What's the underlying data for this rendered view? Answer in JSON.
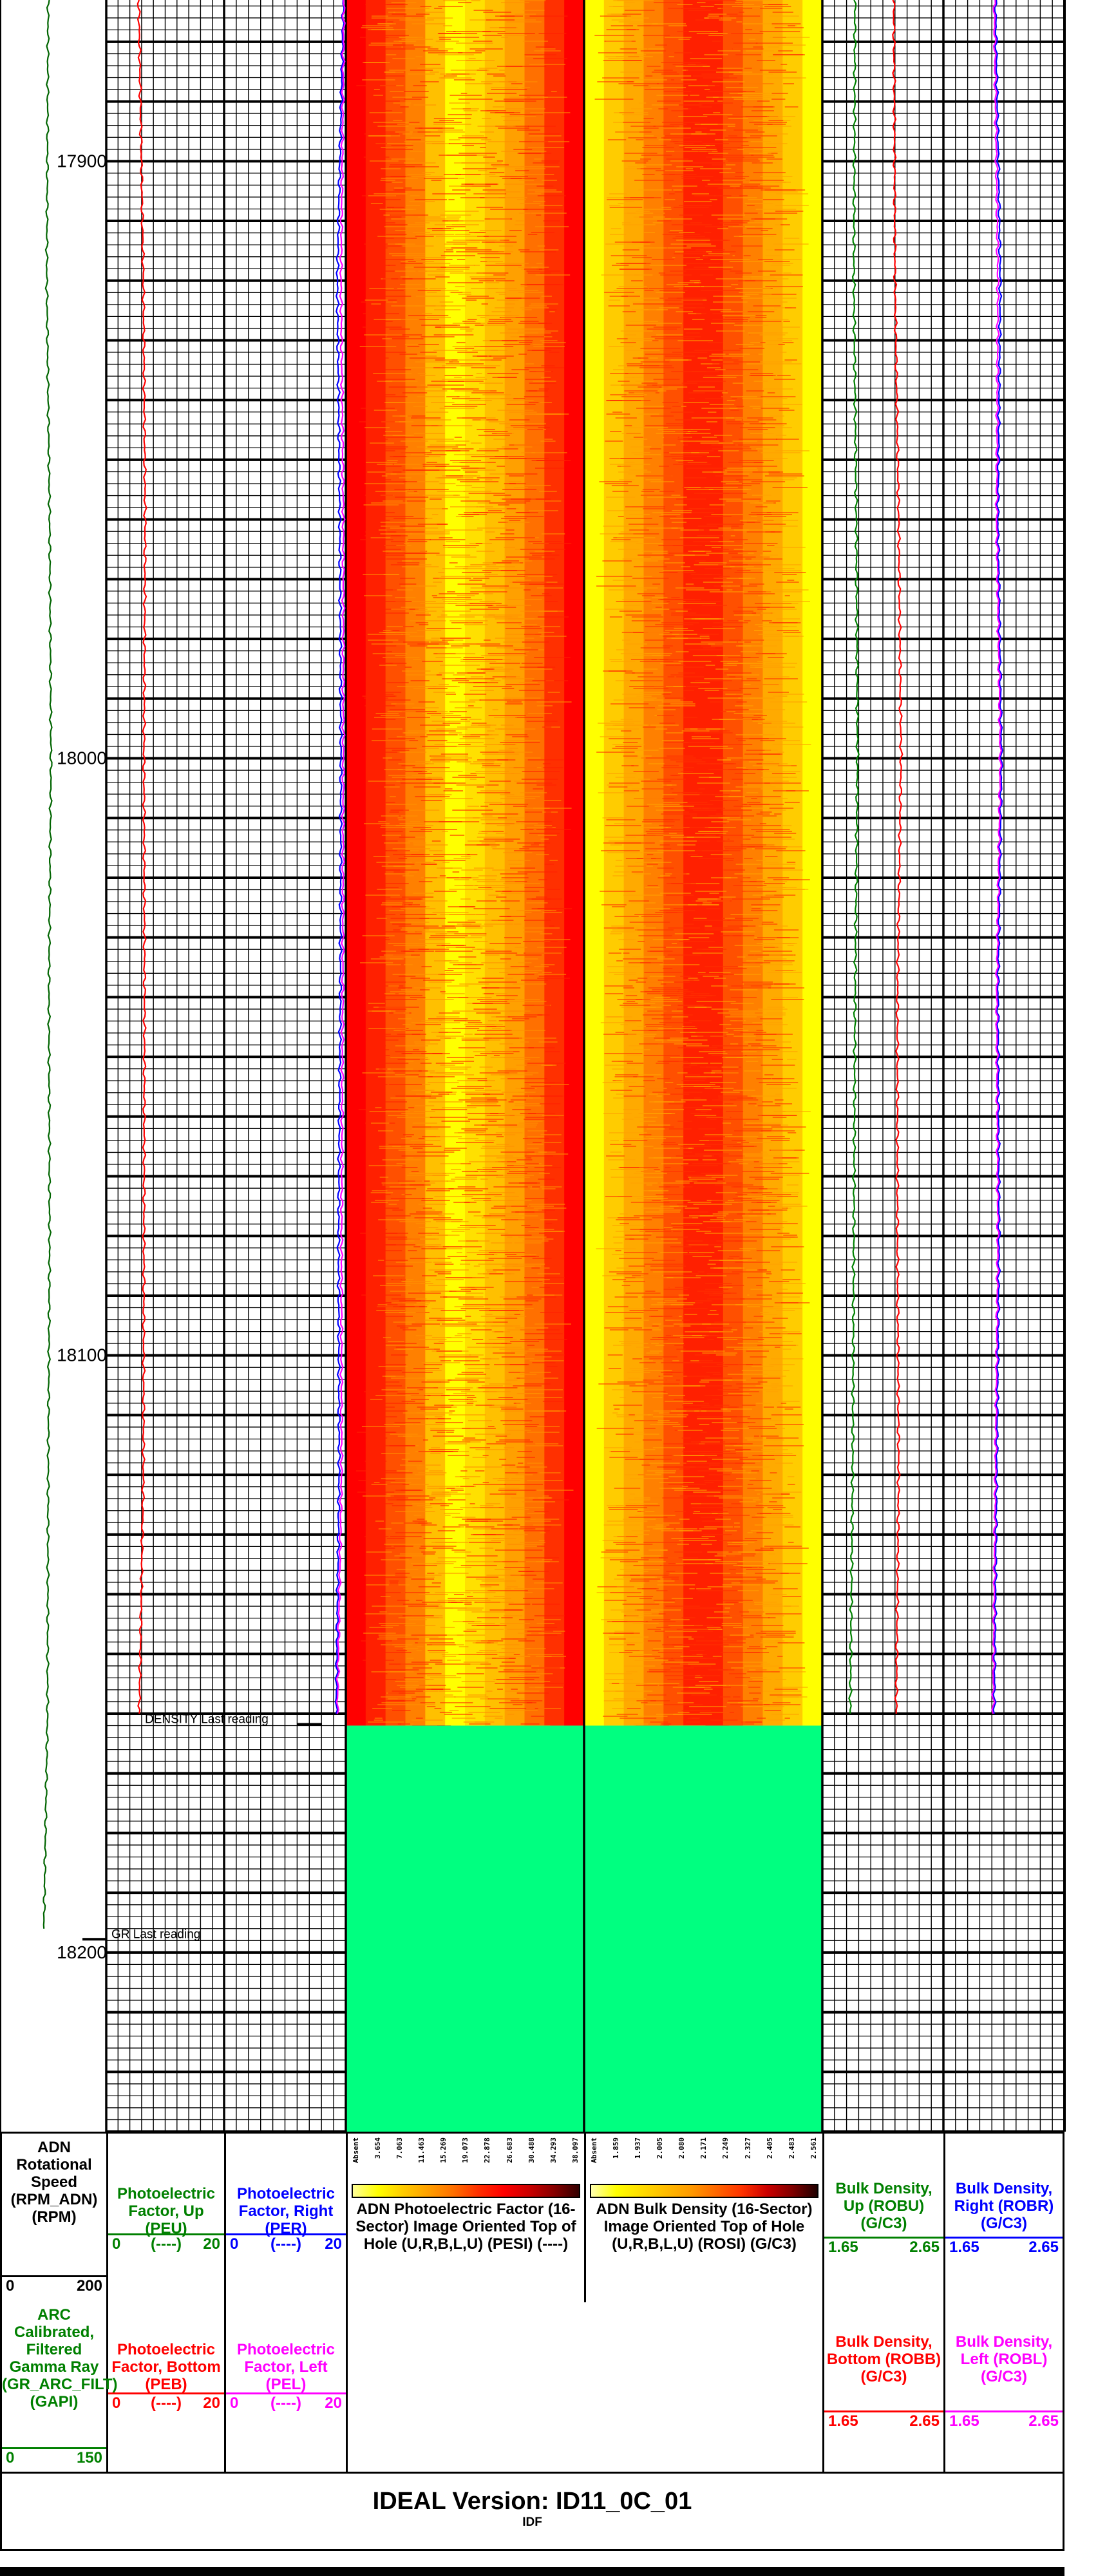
{
  "chart_data": {
    "type": "line",
    "title": "",
    "depth_axis": {
      "range": [
        17873,
        18230
      ],
      "tick_labels": [
        "17900",
        "18000",
        "18100",
        "18200"
      ]
    },
    "annotations": [
      {
        "text": "DENSITY Last reading",
        "depth": 18162
      },
      {
        "text": "GR Last reading",
        "depth": 18198
      }
    ],
    "tracks": [
      {
        "id": "rpm_gr",
        "grid": false,
        "curves": [
          {
            "mnemonic": "GR_ARC_FILT",
            "name": "ARC Calibrated, Filtered Gamma Ray (GR_ARC_FILT)",
            "unit": "GAPI",
            "scale": [
              0,
              150
            ],
            "color": "#006400",
            "points": [
              [
                17873,
                68
              ],
              [
                17920,
                66
              ],
              [
                17960,
                70
              ],
              [
                18000,
                72
              ],
              [
                18040,
                69
              ],
              [
                18080,
                70
              ],
              [
                18120,
                68
              ],
              [
                18160,
                67
              ],
              [
                18196,
                62
              ]
            ]
          }
        ]
      },
      {
        "id": "pe_up_bottom",
        "grid": true,
        "curves": [
          {
            "mnemonic": "PEU",
            "name": "Photoelectric Factor, Up",
            "unit": "----",
            "scale": [
              0,
              20
            ],
            "color": "#008000",
            "points": []
          },
          {
            "mnemonic": "PEB",
            "name": "Photoelectric Factor, Bottom",
            "unit": "----",
            "scale": [
              0,
              20
            ],
            "color": "#ff0000",
            "points": [
              [
                17873,
                5.5
              ],
              [
                17920,
                6.3
              ],
              [
                17960,
                6.6
              ],
              [
                18000,
                6.4
              ],
              [
                18040,
                6.5
              ],
              [
                18080,
                6.4
              ],
              [
                18120,
                6.3
              ],
              [
                18160,
                5.6
              ]
            ]
          }
        ]
      },
      {
        "id": "pe_right_left",
        "grid": true,
        "curves": [
          {
            "mnemonic": "PER",
            "name": "Photoelectric Factor, Right",
            "unit": "----",
            "scale": [
              0,
              20
            ],
            "color": "#0000ff",
            "points": [
              [
                17873,
                19.6
              ],
              [
                17920,
                18.6
              ],
              [
                17960,
                19.0
              ],
              [
                18000,
                19.2
              ],
              [
                18040,
                19.1
              ],
              [
                18080,
                18.8
              ],
              [
                18120,
                18.9
              ],
              [
                18160,
                18.4
              ]
            ]
          },
          {
            "mnemonic": "PEL",
            "name": "Photoelectric Factor, Left",
            "unit": "----",
            "scale": [
              0,
              20
            ],
            "color": "#ff00ff",
            "points": [
              [
                17873,
                19.7
              ],
              [
                17920,
                19.2
              ],
              [
                17960,
                19.6
              ],
              [
                18000,
                19.6
              ],
              [
                18040,
                19.5
              ],
              [
                18080,
                19.3
              ],
              [
                18120,
                19.3
              ],
              [
                18160,
                18.6
              ]
            ]
          }
        ]
      },
      {
        "id": "pesi",
        "type": "image",
        "name": "ADN Photoelectric Factor (16-Sector) Image Oriented Top of Hole (U,R,B,L,U) (PESI)",
        "unit": "----",
        "data_range": [
          18162,
          18230
        ],
        "no_data_color": "#00ff80",
        "colorbar": {
          "ticks": [
            "Absent",
            "3.654",
            "7.063",
            "11.463",
            "15.269",
            "19.073",
            "22.878",
            "26.683",
            "30.488",
            "34.293",
            "38.097"
          ],
          "colors": [
            "#ffff99",
            "#ffff00",
            "#ffcc00",
            "#ffa000",
            "#ff7000",
            "#ff3000",
            "#ff0000",
            "#cc0000",
            "#880000",
            "#330000"
          ]
        },
        "column_pattern": [
          "#ff0000",
          "#ff2000",
          "#ff5000",
          "#ff8000",
          "#ffc000",
          "#ffff00",
          "#ffe000",
          "#ffc000",
          "#ffa000",
          "#ff7000",
          "#ff3000",
          "#ff0000"
        ]
      },
      {
        "id": "rosi",
        "type": "image",
        "name": "ADN Bulk Density (16-Sector) Image Oriented Top of Hole (U,R,B,L,U) (ROSI)",
        "unit": "G/C3",
        "data_range": [
          18162,
          18230
        ],
        "no_data_color": "#00ff80",
        "colorbar": {
          "ticks": [
            "Absent",
            "1.859",
            "1.937",
            "2.005",
            "2.080",
            "2.171",
            "2.249",
            "2.327",
            "2.405",
            "2.483",
            "2.561"
          ],
          "colors": [
            "#ffffb0",
            "#ffff00",
            "#ffdd00",
            "#ffbb00",
            "#ff9900",
            "#ff6600",
            "#ff3300",
            "#cc0000",
            "#800000",
            "#200000"
          ]
        },
        "column_pattern": [
          "#ffff00",
          "#ffcc00",
          "#ffaa00",
          "#ff8000",
          "#ff5000",
          "#ff2000",
          "#ff2000",
          "#ff5000",
          "#ff8000",
          "#ffaa00",
          "#ffcc00",
          "#ffff00"
        ]
      },
      {
        "id": "rho_up_bottom",
        "grid": true,
        "curves": [
          {
            "mnemonic": "ROBU",
            "name": "Bulk Density, Up (ROBU)",
            "unit": "G/C3",
            "scale": [
              1.65,
              2.65
            ],
            "color": "#008000",
            "points": [
              [
                17873,
                1.92
              ],
              [
                17920,
                1.91
              ],
              [
                17960,
                1.93
              ],
              [
                18000,
                1.94
              ],
              [
                18040,
                1.92
              ],
              [
                18080,
                1.91
              ],
              [
                18120,
                1.9
              ],
              [
                18160,
                1.88
              ]
            ]
          },
          {
            "mnemonic": "ROBB",
            "name": "Bulk Density, Bottom (ROBB)",
            "unit": "G/C3",
            "scale": [
              1.65,
              2.65
            ],
            "color": "#ff0000",
            "points": [
              [
                17873,
                2.24
              ],
              [
                17920,
                2.25
              ],
              [
                17960,
                2.28
              ],
              [
                18000,
                2.3
              ],
              [
                18040,
                2.27
              ],
              [
                18080,
                2.27
              ],
              [
                18120,
                2.28
              ],
              [
                18160,
                2.26
              ]
            ]
          }
        ]
      },
      {
        "id": "rho_right_left",
        "grid": true,
        "curves": [
          {
            "mnemonic": "ROBR",
            "name": "Bulk Density, Right (ROBR)",
            "unit": "G/C3",
            "scale": [
              1.65,
              2.65
            ],
            "color": "#0000ff",
            "points": [
              [
                17873,
                2.08
              ],
              [
                17920,
                2.12
              ],
              [
                17960,
                2.1
              ],
              [
                18000,
                2.13
              ],
              [
                18040,
                2.1
              ],
              [
                18080,
                2.11
              ],
              [
                18120,
                2.09
              ],
              [
                18160,
                2.07
              ]
            ]
          },
          {
            "mnemonic": "ROBL",
            "name": "Bulk Density, Left (ROBL)",
            "unit": "G/C3",
            "scale": [
              1.65,
              2.65
            ],
            "color": "#ff00ff",
            "points": [
              [
                17873,
                2.07
              ],
              [
                17920,
                2.1
              ],
              [
                17960,
                2.09
              ],
              [
                18000,
                2.12
              ],
              [
                18040,
                2.09
              ],
              [
                18080,
                2.1
              ],
              [
                18120,
                2.08
              ],
              [
                18160,
                2.06
              ]
            ]
          }
        ]
      }
    ]
  },
  "header": {
    "rpm": {
      "title": "ADN Rotational Speed (RPM_ADN) (RPM)",
      "min": "0",
      "max": "200",
      "color": "#000000"
    },
    "gr": {
      "title": "ARC Calibrated, Filtered Gamma Ray (GR_ARC_FILT) (GAPI)",
      "min": "0",
      "max": "150",
      "color": "#008000"
    },
    "peu": {
      "title": "Photoelectric Factor, Up (PEU)",
      "min": "0",
      "mid": "(----)",
      "max": "20",
      "color": "#008000"
    },
    "peb": {
      "title": "Photoelectric Factor, Bottom (PEB)",
      "min": "0",
      "mid": "(----)",
      "max": "20",
      "color": "#ff0000"
    },
    "per": {
      "title": "Photoelectric Factor, Right (PER)",
      "min": "0",
      "mid": "(----)",
      "max": "20",
      "color": "#0000ff"
    },
    "pel": {
      "title": "Photoelectric Factor, Left (PEL)",
      "min": "0",
      "mid": "(----)",
      "max": "20",
      "color": "#ff00ff"
    },
    "pesi": {
      "title": "ADN Photoelectric Factor (16-Sector) Image Oriented Top of Hole (U,R,B,L,U) (PESI) (----)"
    },
    "rosi": {
      "title": "ADN Bulk Density (16-Sector) Image Oriented Top of Hole (U,R,B,L,U) (ROSI) (G/C3)"
    },
    "robu": {
      "title": "Bulk Density, Up (ROBU) (G/C3)",
      "min": "1.65",
      "max": "2.65",
      "color": "#008000"
    },
    "robb": {
      "title": "Bulk Density, Bottom (ROBB) (G/C3)",
      "min": "1.65",
      "max": "2.65",
      "color": "#ff0000"
    },
    "robr": {
      "title": "Bulk Density, Right (ROBR) (G/C3)",
      "min": "1.65",
      "max": "2.65",
      "color": "#0000ff"
    },
    "robl": {
      "title": "Bulk Density, Left (ROBL) (G/C3)",
      "min": "1.65",
      "max": "2.65",
      "color": "#ff00ff"
    }
  },
  "footer": {
    "version": "IDEAL Version: ID11_0C_01",
    "sub": "IDF"
  }
}
